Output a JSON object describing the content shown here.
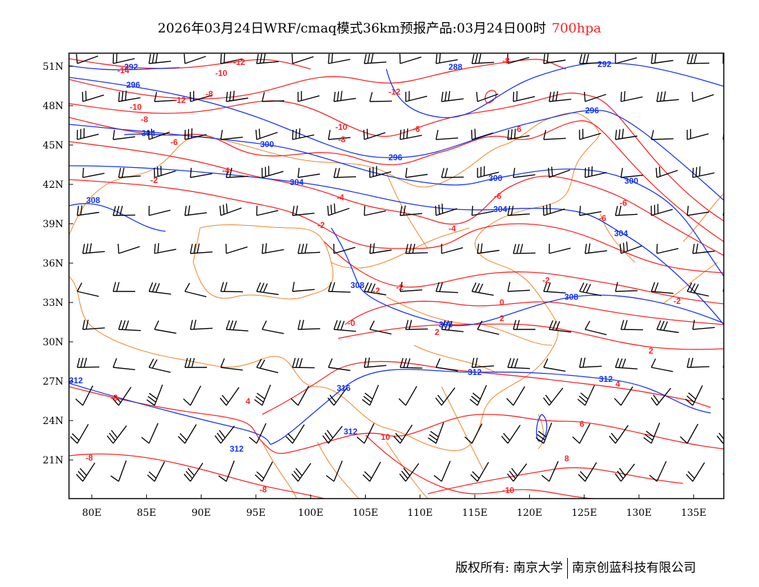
{
  "title": {
    "text": "2026年03月24日WRF/cmaq模式36km预报产品:03月24日00时",
    "level": "700hpa",
    "level_color": "#ff2020"
  },
  "axes": {
    "lon_labels": [
      "80E",
      "85E",
      "90E",
      "95E",
      "100E",
      "105E",
      "110E",
      "115E",
      "120E",
      "125E",
      "130E",
      "135E"
    ],
    "lat_labels": [
      "51N",
      "48N",
      "45N",
      "42N",
      "39N",
      "36N",
      "33N",
      "30N",
      "27N",
      "24N",
      "21N"
    ]
  },
  "contours": {
    "height_color": "#1030ff",
    "temperature_color": "#ff2020",
    "border_color": "#f08020",
    "height_labels": [
      "292",
      "296",
      "288",
      "292",
      "296",
      "304",
      "300",
      "296",
      "300",
      "300",
      "304",
      "304",
      "304",
      "308",
      "308",
      "308",
      "308",
      "312",
      "316",
      "312",
      "312",
      "312",
      "312"
    ],
    "temp_labels": [
      "-14",
      "-12",
      "-10",
      "-8",
      "-10",
      "-12",
      "-8",
      "-12",
      "-10",
      "-8",
      "-8",
      "-6",
      "-6",
      "-6",
      "-4",
      "-2",
      "-4",
      "-2",
      "-6",
      "-4",
      "-2",
      "-2",
      "-0",
      "-2",
      "0",
      "2",
      "-2",
      "2",
      "4",
      "-6",
      "-6",
      "6",
      "8",
      "10",
      "-8",
      "-8",
      "-8",
      "-10",
      "4",
      "2"
    ]
  },
  "footer": {
    "copyright": "版权所有: 南京大学",
    "company": "南京创蓝科技有限公司"
  }
}
